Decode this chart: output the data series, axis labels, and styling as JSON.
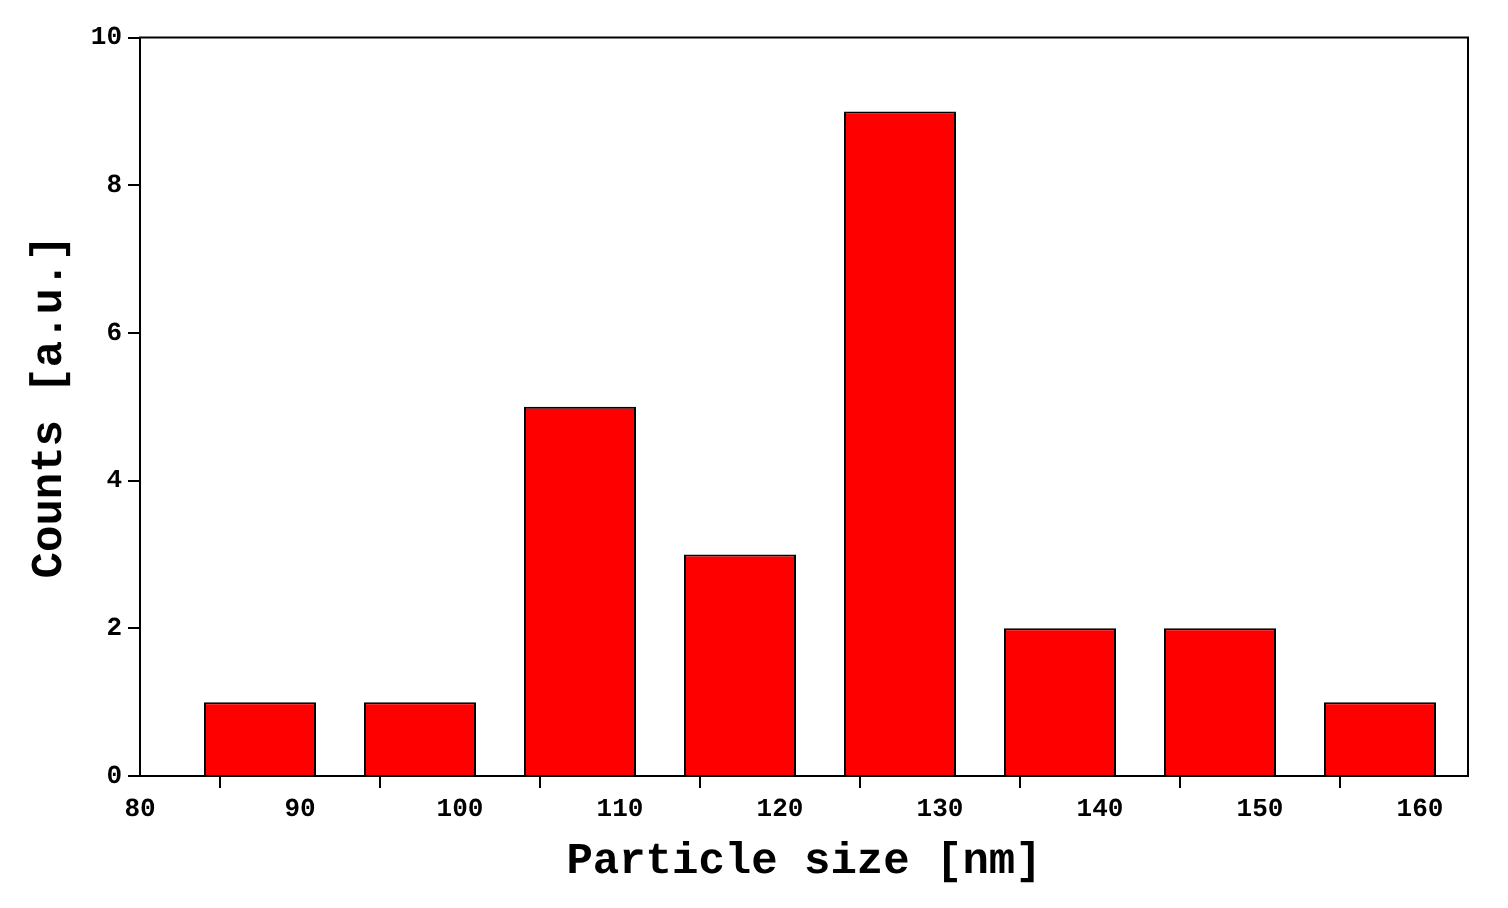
{
  "chart_data": {
    "type": "bar",
    "xlabel": "Particle size [nm]",
    "ylabel": "Counts [a.u.]",
    "x": [
      87.5,
      97.5,
      107.5,
      117.5,
      127.5,
      137.5,
      147.5,
      157.5
    ],
    "values": [
      1,
      1,
      5,
      3,
      9,
      2,
      2,
      1
    ],
    "color": "#ff0000",
    "xlim": [
      80,
      163
    ],
    "xticks": [
      80,
      90,
      100,
      110,
      120,
      130,
      140,
      150,
      160
    ],
    "ylim": [
      0,
      10
    ],
    "yticks": [
      0,
      2,
      4,
      6,
      8,
      10
    ],
    "grid": false,
    "legend": false
  }
}
